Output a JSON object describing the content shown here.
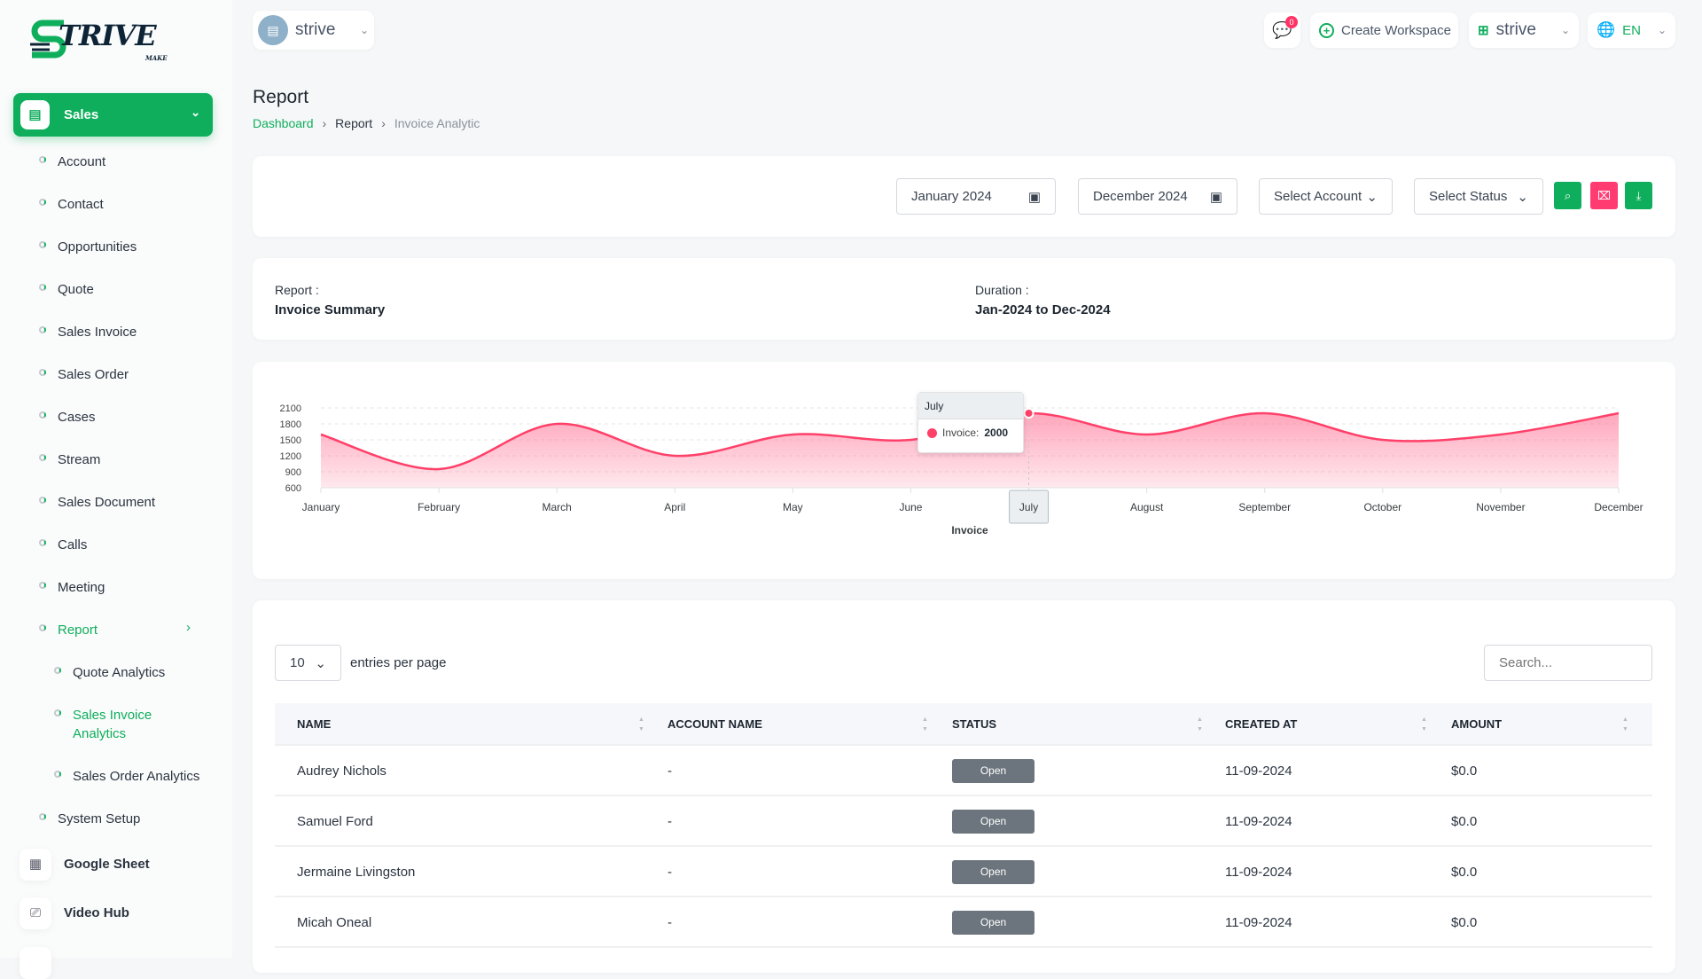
{
  "brand": {
    "logo_text": "TRIVE",
    "logo_sub": "MAKE"
  },
  "workspace_selector": {
    "name": "strive"
  },
  "topbar": {
    "notifications_count": "0",
    "create_workspace": "Create Workspace",
    "workspace": "strive",
    "language": "EN"
  },
  "sidebar": {
    "sales": "Sales",
    "items": [
      {
        "label": "Account"
      },
      {
        "label": "Contact"
      },
      {
        "label": "Opportunities"
      },
      {
        "label": "Quote"
      },
      {
        "label": "Sales Invoice"
      },
      {
        "label": "Sales Order"
      },
      {
        "label": "Cases"
      },
      {
        "label": "Stream"
      },
      {
        "label": "Sales Document"
      },
      {
        "label": "Calls"
      },
      {
        "label": "Meeting"
      },
      {
        "label": "Report"
      }
    ],
    "report_sub": [
      {
        "label": "Quote Analytics"
      },
      {
        "label": "Sales Invoice Analytics"
      },
      {
        "label": "Sales Order Analytics"
      }
    ],
    "system_setup": "System Setup",
    "google_sheet": "Google Sheet",
    "video_hub": "Video Hub"
  },
  "page": {
    "title": "Report",
    "breadcrumb": [
      "Dashboard",
      "Report",
      "Invoice Analytic"
    ]
  },
  "filters": {
    "start": "January 2024",
    "end": "December 2024",
    "account": "Select Account",
    "status": "Select Status"
  },
  "summary": {
    "report_label": "Report :",
    "report_value": "Invoice Summary",
    "duration_label": "Duration :",
    "duration_value": "Jan-2024 to Dec-2024"
  },
  "chart_data": {
    "type": "area",
    "title": "",
    "xlabel": "Invoice",
    "ylabel": "",
    "ylim": [
      600,
      2100
    ],
    "yticks": [
      "2100",
      "1800",
      "1500",
      "1200",
      "900",
      "600"
    ],
    "categories": [
      "January",
      "February",
      "March",
      "April",
      "May",
      "June",
      "July",
      "August",
      "September",
      "October",
      "November",
      "December"
    ],
    "series": [
      {
        "name": "Invoice",
        "values": [
          1600,
          950,
          1800,
          1200,
          1600,
          1500,
          2000,
          1600,
          2000,
          1500,
          1600,
          2000
        ]
      }
    ],
    "tooltip": {
      "title": "July",
      "label": "Invoice:",
      "value": "2000"
    },
    "color": "#ff4069",
    "grid": true
  },
  "table": {
    "per_page": "10",
    "per_page_label": "entries per page",
    "search_placeholder": "Search...",
    "columns": [
      "NAME",
      "ACCOUNT NAME",
      "STATUS",
      "CREATED AT",
      "AMOUNT"
    ],
    "rows": [
      [
        "Audrey Nichols",
        "-",
        "Open",
        "11-09-2024",
        "$0.0"
      ],
      [
        "Samuel Ford",
        "-",
        "Open",
        "11-09-2024",
        "$0.0"
      ],
      [
        "Jermaine Livingston",
        "-",
        "Open",
        "11-09-2024",
        "$0.0"
      ],
      [
        "Micah Oneal",
        "-",
        "Open",
        "11-09-2024",
        "$0.0"
      ]
    ]
  }
}
